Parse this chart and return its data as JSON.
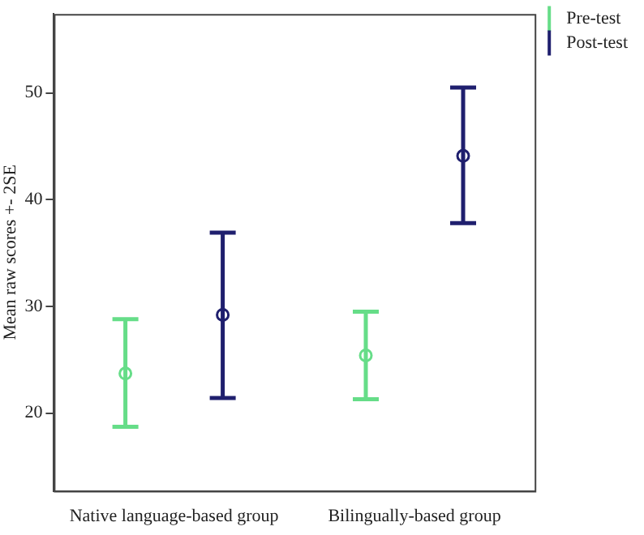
{
  "chart_data": {
    "type": "scatter",
    "ylabel": "Mean raw scores +- 2SE",
    "categories": [
      "Native language-based group",
      "Bilingually-based group"
    ],
    "series": [
      {
        "name": "Pre-test",
        "color": "#66dd88",
        "values": [
          23.7,
          25.4
        ],
        "errors": [
          [
            18.7,
            28.8
          ],
          [
            21.3,
            29.5
          ]
        ]
      },
      {
        "name": "Post-test",
        "color": "#1f1f6e",
        "values": [
          29.2,
          44.1
        ],
        "errors": [
          [
            21.4,
            36.9
          ],
          [
            37.8,
            50.5
          ]
        ]
      }
    ],
    "ylim": [
      12.7,
      57.4
    ],
    "yticks": [
      20,
      30,
      40,
      50
    ],
    "grid": false,
    "legend": "top right",
    "marker": "circle"
  }
}
